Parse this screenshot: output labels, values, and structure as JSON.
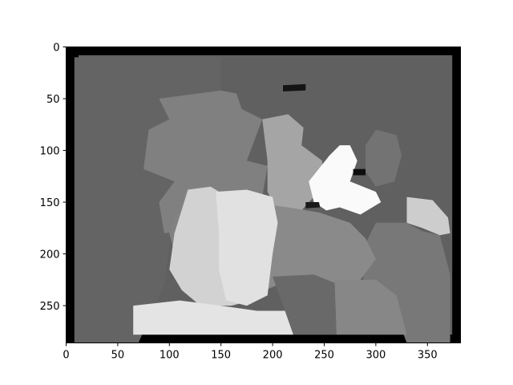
{
  "chart_data": {
    "type": "heatmap",
    "colormap": "gray",
    "description_note": "",
    "title": "",
    "xlabel": "",
    "ylabel": "",
    "xlim": [
      0,
      382
    ],
    "ylim": [
      286,
      0
    ],
    "x_ticks": [
      0,
      50,
      100,
      150,
      200,
      250,
      300,
      350
    ],
    "y_ticks": [
      0,
      50,
      100,
      150,
      200,
      250
    ],
    "grid": false,
    "image_width": 382,
    "image_height": 286,
    "value_range": [
      0,
      255
    ],
    "background_value": 96,
    "border_value": 0,
    "regions": [
      {
        "name": "left-gray",
        "value": 100,
        "poly": [
          [
            8,
            10
          ],
          [
            150,
            10
          ],
          [
            150,
            100
          ],
          [
            110,
            120
          ],
          [
            95,
            230
          ],
          [
            70,
            286
          ],
          [
            8,
            286
          ]
        ]
      },
      {
        "name": "upper-mid",
        "value": 128,
        "poly": [
          [
            90,
            50
          ],
          [
            150,
            42
          ],
          [
            165,
            45
          ],
          [
            170,
            60
          ],
          [
            190,
            70
          ],
          [
            175,
            110
          ],
          [
            195,
            115
          ],
          [
            190,
            145
          ],
          [
            160,
            150
          ],
          [
            140,
            175
          ],
          [
            95,
            180
          ],
          [
            90,
            150
          ],
          [
            105,
            130
          ],
          [
            75,
            118
          ],
          [
            80,
            80
          ],
          [
            100,
            70
          ]
        ]
      },
      {
        "name": "mid-left-block",
        "value": 130,
        "poly": [
          [
            118,
            135
          ],
          [
            145,
            140
          ],
          [
            150,
            170
          ],
          [
            130,
            200
          ],
          [
            105,
            200
          ],
          [
            100,
            180
          ],
          [
            108,
            160
          ]
        ]
      },
      {
        "name": "center-column",
        "value": 165,
        "poly": [
          [
            190,
            70
          ],
          [
            215,
            65
          ],
          [
            230,
            78
          ],
          [
            228,
            95
          ],
          [
            248,
            110
          ],
          [
            250,
            135
          ],
          [
            235,
            150
          ],
          [
            222,
            165
          ],
          [
            205,
            160
          ],
          [
            195,
            140
          ],
          [
            195,
            110
          ]
        ]
      },
      {
        "name": "bright-object",
        "value": 250,
        "poly": [
          [
            235,
            130
          ],
          [
            255,
            105
          ],
          [
            265,
            95
          ],
          [
            275,
            95
          ],
          [
            282,
            110
          ],
          [
            275,
            130
          ],
          [
            300,
            140
          ],
          [
            305,
            150
          ],
          [
            285,
            162
          ],
          [
            265,
            155
          ],
          [
            252,
            158
          ],
          [
            240,
            150
          ]
        ]
      },
      {
        "name": "right-shade",
        "value": 205,
        "poly": [
          [
            330,
            145
          ],
          [
            355,
            148
          ],
          [
            370,
            165
          ],
          [
            372,
            180
          ],
          [
            362,
            182
          ],
          [
            345,
            175
          ],
          [
            330,
            170
          ]
        ]
      },
      {
        "name": "right-area",
        "value": 120,
        "poly": [
          [
            300,
            170
          ],
          [
            330,
            170
          ],
          [
            345,
            178
          ],
          [
            362,
            182
          ],
          [
            372,
            220
          ],
          [
            372,
            286
          ],
          [
            330,
            286
          ],
          [
            320,
            260
          ],
          [
            290,
            240
          ],
          [
            285,
            200
          ]
        ]
      },
      {
        "name": "right-upper",
        "value": 115,
        "poly": [
          [
            290,
            95
          ],
          [
            300,
            80
          ],
          [
            320,
            85
          ],
          [
            325,
            105
          ],
          [
            318,
            130
          ],
          [
            300,
            135
          ],
          [
            290,
            120
          ]
        ]
      },
      {
        "name": "center-body",
        "value": 138,
        "poly": [
          [
            175,
            150
          ],
          [
            215,
            155
          ],
          [
            245,
            160
          ],
          [
            275,
            170
          ],
          [
            290,
            185
          ],
          [
            300,
            205
          ],
          [
            285,
            225
          ],
          [
            250,
            230
          ],
          [
            210,
            228
          ],
          [
            180,
            240
          ],
          [
            160,
            230
          ],
          [
            160,
            200
          ],
          [
            165,
            170
          ]
        ]
      },
      {
        "name": "light-left",
        "value": 210,
        "poly": [
          [
            118,
            138
          ],
          [
            140,
            135
          ],
          [
            165,
            150
          ],
          [
            185,
            170
          ],
          [
            195,
            190
          ],
          [
            190,
            230
          ],
          [
            180,
            245
          ],
          [
            160,
            250
          ],
          [
            130,
            250
          ],
          [
            112,
            235
          ],
          [
            100,
            215
          ],
          [
            105,
            180
          ]
        ]
      },
      {
        "name": "lighter-center",
        "value": 225,
        "poly": [
          [
            145,
            140
          ],
          [
            175,
            138
          ],
          [
            200,
            145
          ],
          [
            205,
            170
          ],
          [
            200,
            200
          ],
          [
            195,
            240
          ],
          [
            175,
            250
          ],
          [
            155,
            245
          ],
          [
            148,
            215
          ],
          [
            148,
            180
          ]
        ]
      },
      {
        "name": "bottom-light",
        "value": 228,
        "poly": [
          [
            65,
            250
          ],
          [
            110,
            245
          ],
          [
            150,
            250
          ],
          [
            185,
            255
          ],
          [
            215,
            255
          ],
          [
            220,
            278
          ],
          [
            65,
            278
          ]
        ]
      },
      {
        "name": "bottom-mid-dark",
        "value": 105,
        "poly": [
          [
            200,
            222
          ],
          [
            240,
            220
          ],
          [
            265,
            230
          ],
          [
            262,
            278
          ],
          [
            220,
            278
          ],
          [
            212,
            255
          ]
        ]
      },
      {
        "name": "bottom-right-mid",
        "value": 135,
        "poly": [
          [
            260,
            225
          ],
          [
            300,
            225
          ],
          [
            320,
            240
          ],
          [
            330,
            278
          ],
          [
            262,
            278
          ]
        ]
      },
      {
        "name": "black-speck-1",
        "value": 20,
        "poly": [
          [
            210,
            37
          ],
          [
            232,
            36
          ],
          [
            232,
            42
          ],
          [
            210,
            43
          ]
        ]
      },
      {
        "name": "black-speck-2",
        "value": 25,
        "poly": [
          [
            232,
            150
          ],
          [
            245,
            150
          ],
          [
            246,
            155
          ],
          [
            232,
            156
          ]
        ]
      },
      {
        "name": "black-speck-3",
        "value": 15,
        "poly": [
          [
            278,
            118
          ],
          [
            290,
            118
          ],
          [
            290,
            124
          ],
          [
            278,
            124
          ]
        ]
      }
    ]
  }
}
